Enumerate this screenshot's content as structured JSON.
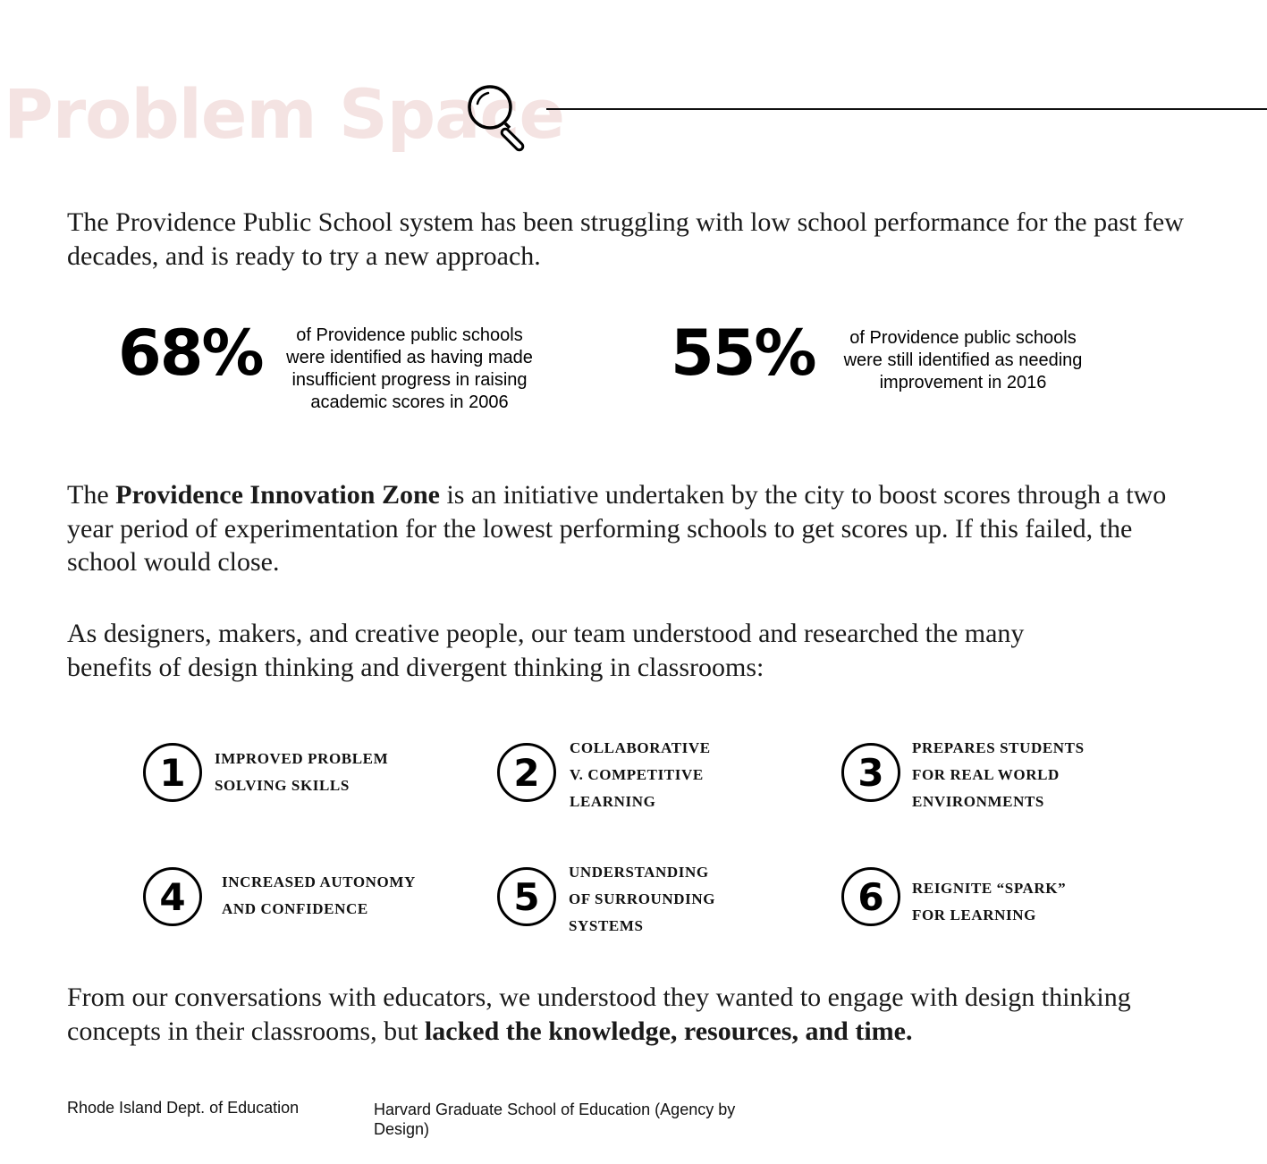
{
  "header": {
    "title": "Problem Space",
    "icon": "magnifying-glass-icon",
    "title_color": "#f4e3e2"
  },
  "intro": "The Providence Public School system has been struggling with low school performance for the past few decades, and is ready to try a new approach.",
  "stats": [
    {
      "value": "68%",
      "text": "of Providence public schools were identified as having made insufficient progress in raising academic scores in 2006"
    },
    {
      "value": "55%",
      "text": "of Providence public schools were still identified as needing improvement in 2016"
    }
  ],
  "zone": {
    "pre": "The ",
    "bold": "Providence Innovation Zone",
    "post": " is an initiative undertaken by the city to boost scores through a two year period of experimentation for the lowest performing schools to get scores up. If this failed, the school would close."
  },
  "benefits_intro": "As designers, makers, and creative people, our team understood and researched the many benefits of design thinking and divergent thinking in classrooms:",
  "benefits": [
    {
      "number": "1",
      "text": "improved problem\nsolving skills"
    },
    {
      "number": "2",
      "text": "collaborative\nv. competitive\nlearning"
    },
    {
      "number": "3",
      "text": "prepares students\nfor real world\nenvironments"
    },
    {
      "number": "4",
      "text": "increased autonomy\nand confidence"
    },
    {
      "number": "5",
      "text": "understanding\nof surrounding\nsystems"
    },
    {
      "number": "6",
      "text": "reignite “spark”\nfor learning"
    }
  ],
  "conclusion": {
    "pre": "From our conversations with educators, we understood they wanted to engage with design thinking concepts in their classrooms, but ",
    "bold": "lacked the knowledge, resources, and time."
  },
  "sources": [
    "Rhode Island Dept. of Education",
    "Harvard Graduate School of Education (Agency by Design)"
  ]
}
